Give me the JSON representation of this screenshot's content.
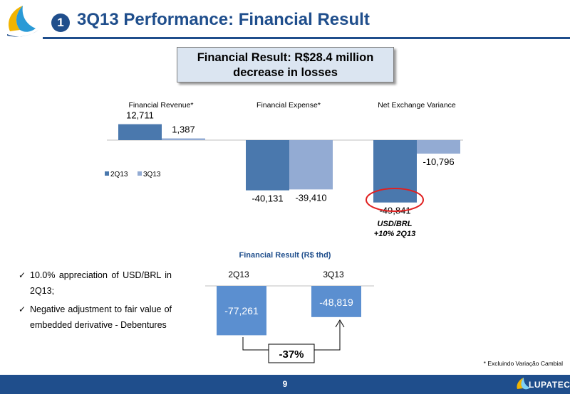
{
  "header": {
    "section_number": "1",
    "title": "3Q13 Performance: Financial Result",
    "logo_icon": "lupatech-swirl-logo-icon"
  },
  "callout": {
    "line1": "Financial Result: R$28.4 million",
    "line2": "decrease in losses"
  },
  "chart_data": [
    {
      "type": "bar",
      "categories": [
        "Financial Revenue*",
        "Financial Expense*",
        "Net Exchange Variance"
      ],
      "series": [
        {
          "name": "2Q13",
          "values": [
            12711,
            -40131,
            -49841
          ],
          "labels": [
            "12,711",
            "-40,131",
            "-49,841"
          ],
          "color": "#4a78ad"
        },
        {
          "name": "3Q13",
          "values": [
            1387,
            -39410,
            -10796
          ],
          "labels": [
            "1,387",
            "-39,410",
            "-10,796"
          ],
          "color": "#93abd3"
        }
      ],
      "legend": "left",
      "annotation": {
        "line1": "USD/BRL",
        "line2": "+10% 2Q13",
        "highlight_color": "#e02020"
      }
    },
    {
      "type": "bar",
      "title": "Financial Result (R$ thd)",
      "categories": [
        "2Q13",
        "3Q13"
      ],
      "values": [
        -77261,
        -48819
      ],
      "labels": [
        "-77,261",
        "-48,819"
      ],
      "color": "#5b8fd0",
      "change_label": "-37%"
    }
  ],
  "bullets": [
    "10.0% appreciation of USD/BRL in 2Q13;",
    "Negative adjustment to fair value of embedded derivative - Debentures"
  ],
  "bullet_icon": "checkmark-icon",
  "footnote": "* Excluindo Variação Cambial",
  "footer": {
    "page_number": "9",
    "brand": "LUPATECH"
  }
}
